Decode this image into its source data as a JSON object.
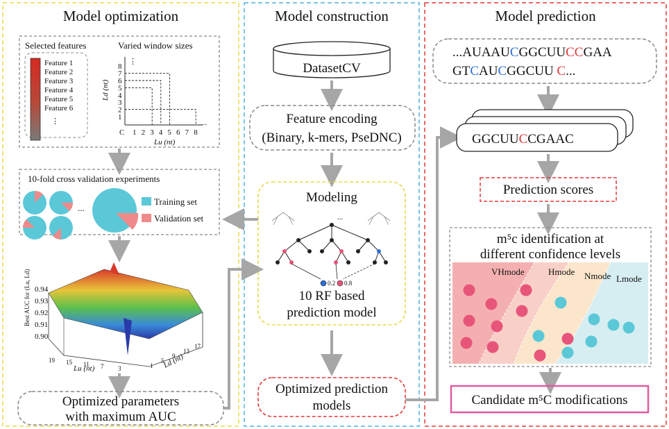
{
  "panels": {
    "optimization": {
      "title": "Model optimization",
      "selected_features_label": "Selected features",
      "features": [
        "Feature 1",
        "Feature 2",
        "Feature 3",
        "Feature 4",
        "Feature 5",
        "Feature 6"
      ],
      "features_more": "⋮",
      "window_label": "Varied window sizes",
      "window_xlabel": "Lu (nt)",
      "window_ylabel": "Ld (nt)",
      "window_ticks": [
        "1",
        "2",
        "3",
        "4",
        "5",
        "6",
        "7",
        "8"
      ],
      "window_origin": "C",
      "window_ellipsis": "...",
      "cv_title": "10-fold cross validation experiments",
      "cv_legend": [
        "Training set",
        "Validation set"
      ],
      "surface_zlabel": "Best AUC for (Lu, Ld)",
      "surface_zticks": [
        "0.94",
        "0.93",
        "0.92",
        "0.91",
        "0.90"
      ],
      "surface_xlabel": "Lu (nt)",
      "surface_ylabel": "Ld (nt)",
      "surface_xticks": [
        "19",
        "15",
        "11",
        "7",
        "3"
      ],
      "surface_yticks": [
        "1",
        "5",
        "9",
        "13",
        "17"
      ],
      "result_line1": "Optimized parameters",
      "result_line2": "with maximum AUC"
    },
    "construction": {
      "title": "Model construction",
      "dataset": "DatasetCV",
      "encoding_line1": "Feature encoding",
      "encoding_line2": "(Binary, k-mers, PseDNC)",
      "modeling_title": "Modeling",
      "model_line1": "10 RF based",
      "model_line2": "prediction model",
      "rf_scores": [
        "0.2",
        "0.8"
      ],
      "result_line1": "Optimized prediction",
      "result_line2": "models"
    },
    "prediction": {
      "title": "Model prediction",
      "sequence_line1": [
        "...AUAAU",
        "C",
        "GGCUU",
        "CC",
        "GAA"
      ],
      "sequence_line2": [
        "GT",
        "C",
        "AU",
        "C",
        "GGCUU ",
        "C",
        "..."
      ],
      "window_seq": [
        "GGCUU",
        "C",
        "CGAAC"
      ],
      "scores_label": "Prediction scores",
      "mode_line1": "m⁵c identification at",
      "mode_line2": "different confidence levels",
      "modes": [
        "VHmode",
        "Hmode",
        "Nmode",
        "Lmode"
      ],
      "candidate": "Candidate m⁵C modifications"
    }
  },
  "colors": {
    "yellow_border": "#e8d84a",
    "blue_border": "#4fb2e0",
    "red_border": "#e03a3a",
    "pink_border": "#e05aa0",
    "cyan": "#5bc8d8",
    "salmon": "#f08a8a",
    "pink_dot": "#e8557a",
    "highlight_blue": "#2a6fd6",
    "highlight_red": "#e03a3a",
    "arrow": "#a6a6a6"
  }
}
